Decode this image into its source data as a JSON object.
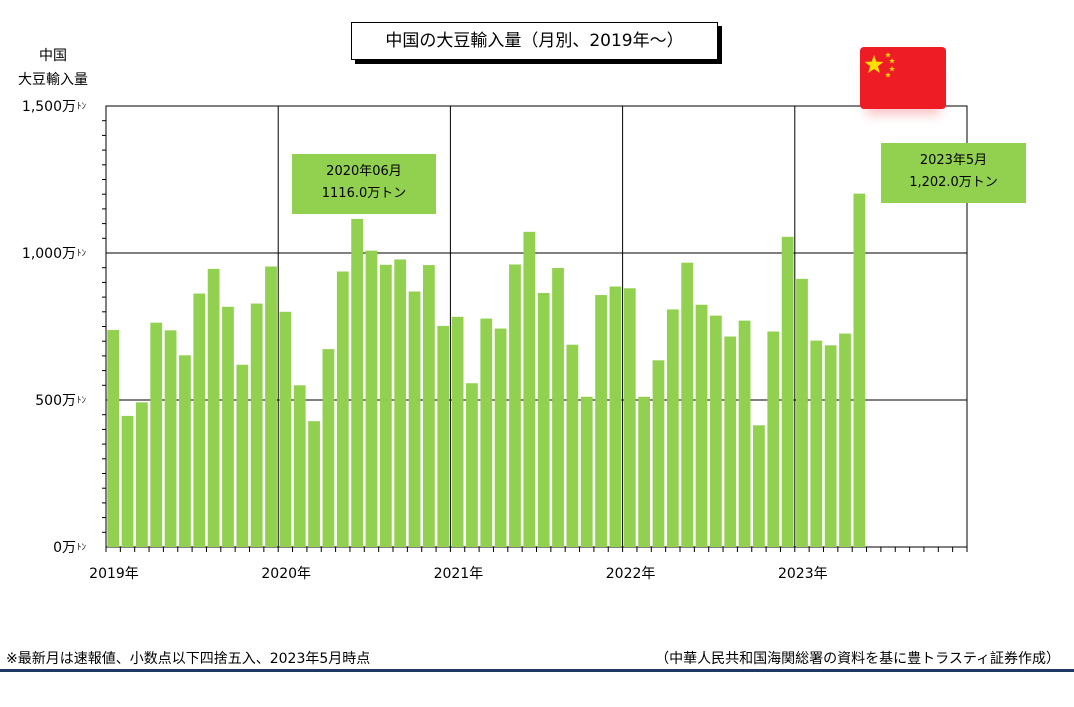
{
  "title": "中国の大豆輸入量（月別、2019年～）",
  "ylabel_line1": "中国",
  "ylabel_line2": "大豆輸入量",
  "footnote": "※最新月は速報値、小数点以下四捨五入、2023年5月時点",
  "source": "（中華人民共和国海関総署の資料を基に豊トラスティ証券作成）",
  "callouts": {
    "peak_2020": {
      "line1": "2020年06月",
      "line2": "1116.0万トン"
    },
    "latest_2023": {
      "line1": "2023年5月",
      "line2": "1,202.0万トン"
    }
  },
  "colors": {
    "bar": "#92d050",
    "grid": "#000000",
    "flag": "#ee1c25",
    "star": "#ffde00",
    "rule": "#1f3864"
  },
  "icons": {
    "flag": "china-flag-icon"
  },
  "chart_data": {
    "type": "bar",
    "ylim": [
      0,
      1500
    ],
    "yticks": [
      0,
      500,
      1000,
      1500
    ],
    "ytick_labels": [
      "0万ﾄﾝ",
      "500万ﾄﾝ",
      "1,000万ﾄﾝ",
      "1,500万ﾄﾝ"
    ],
    "xtick_labels": [
      "2019年",
      "2020年",
      "2021年",
      "2022年",
      "2023年"
    ],
    "months_per_year": 12,
    "total_slots": 60,
    "grid": true,
    "series": [
      {
        "values": [
          738,
          446,
          492,
          763,
          737,
          652,
          862,
          946,
          817,
          620,
          828,
          954,
          800,
          550,
          428,
          673,
          937,
          1116,
          1008,
          960,
          978,
          869,
          959,
          752,
          783,
          557,
          777,
          743,
          961,
          1072,
          864,
          949,
          688,
          511,
          857,
          886,
          880,
          511,
          635,
          808,
          967,
          824,
          787,
          716,
          770,
          414,
          733,
          1055,
          912,
          702,
          686,
          726,
          1202
        ]
      }
    ]
  }
}
